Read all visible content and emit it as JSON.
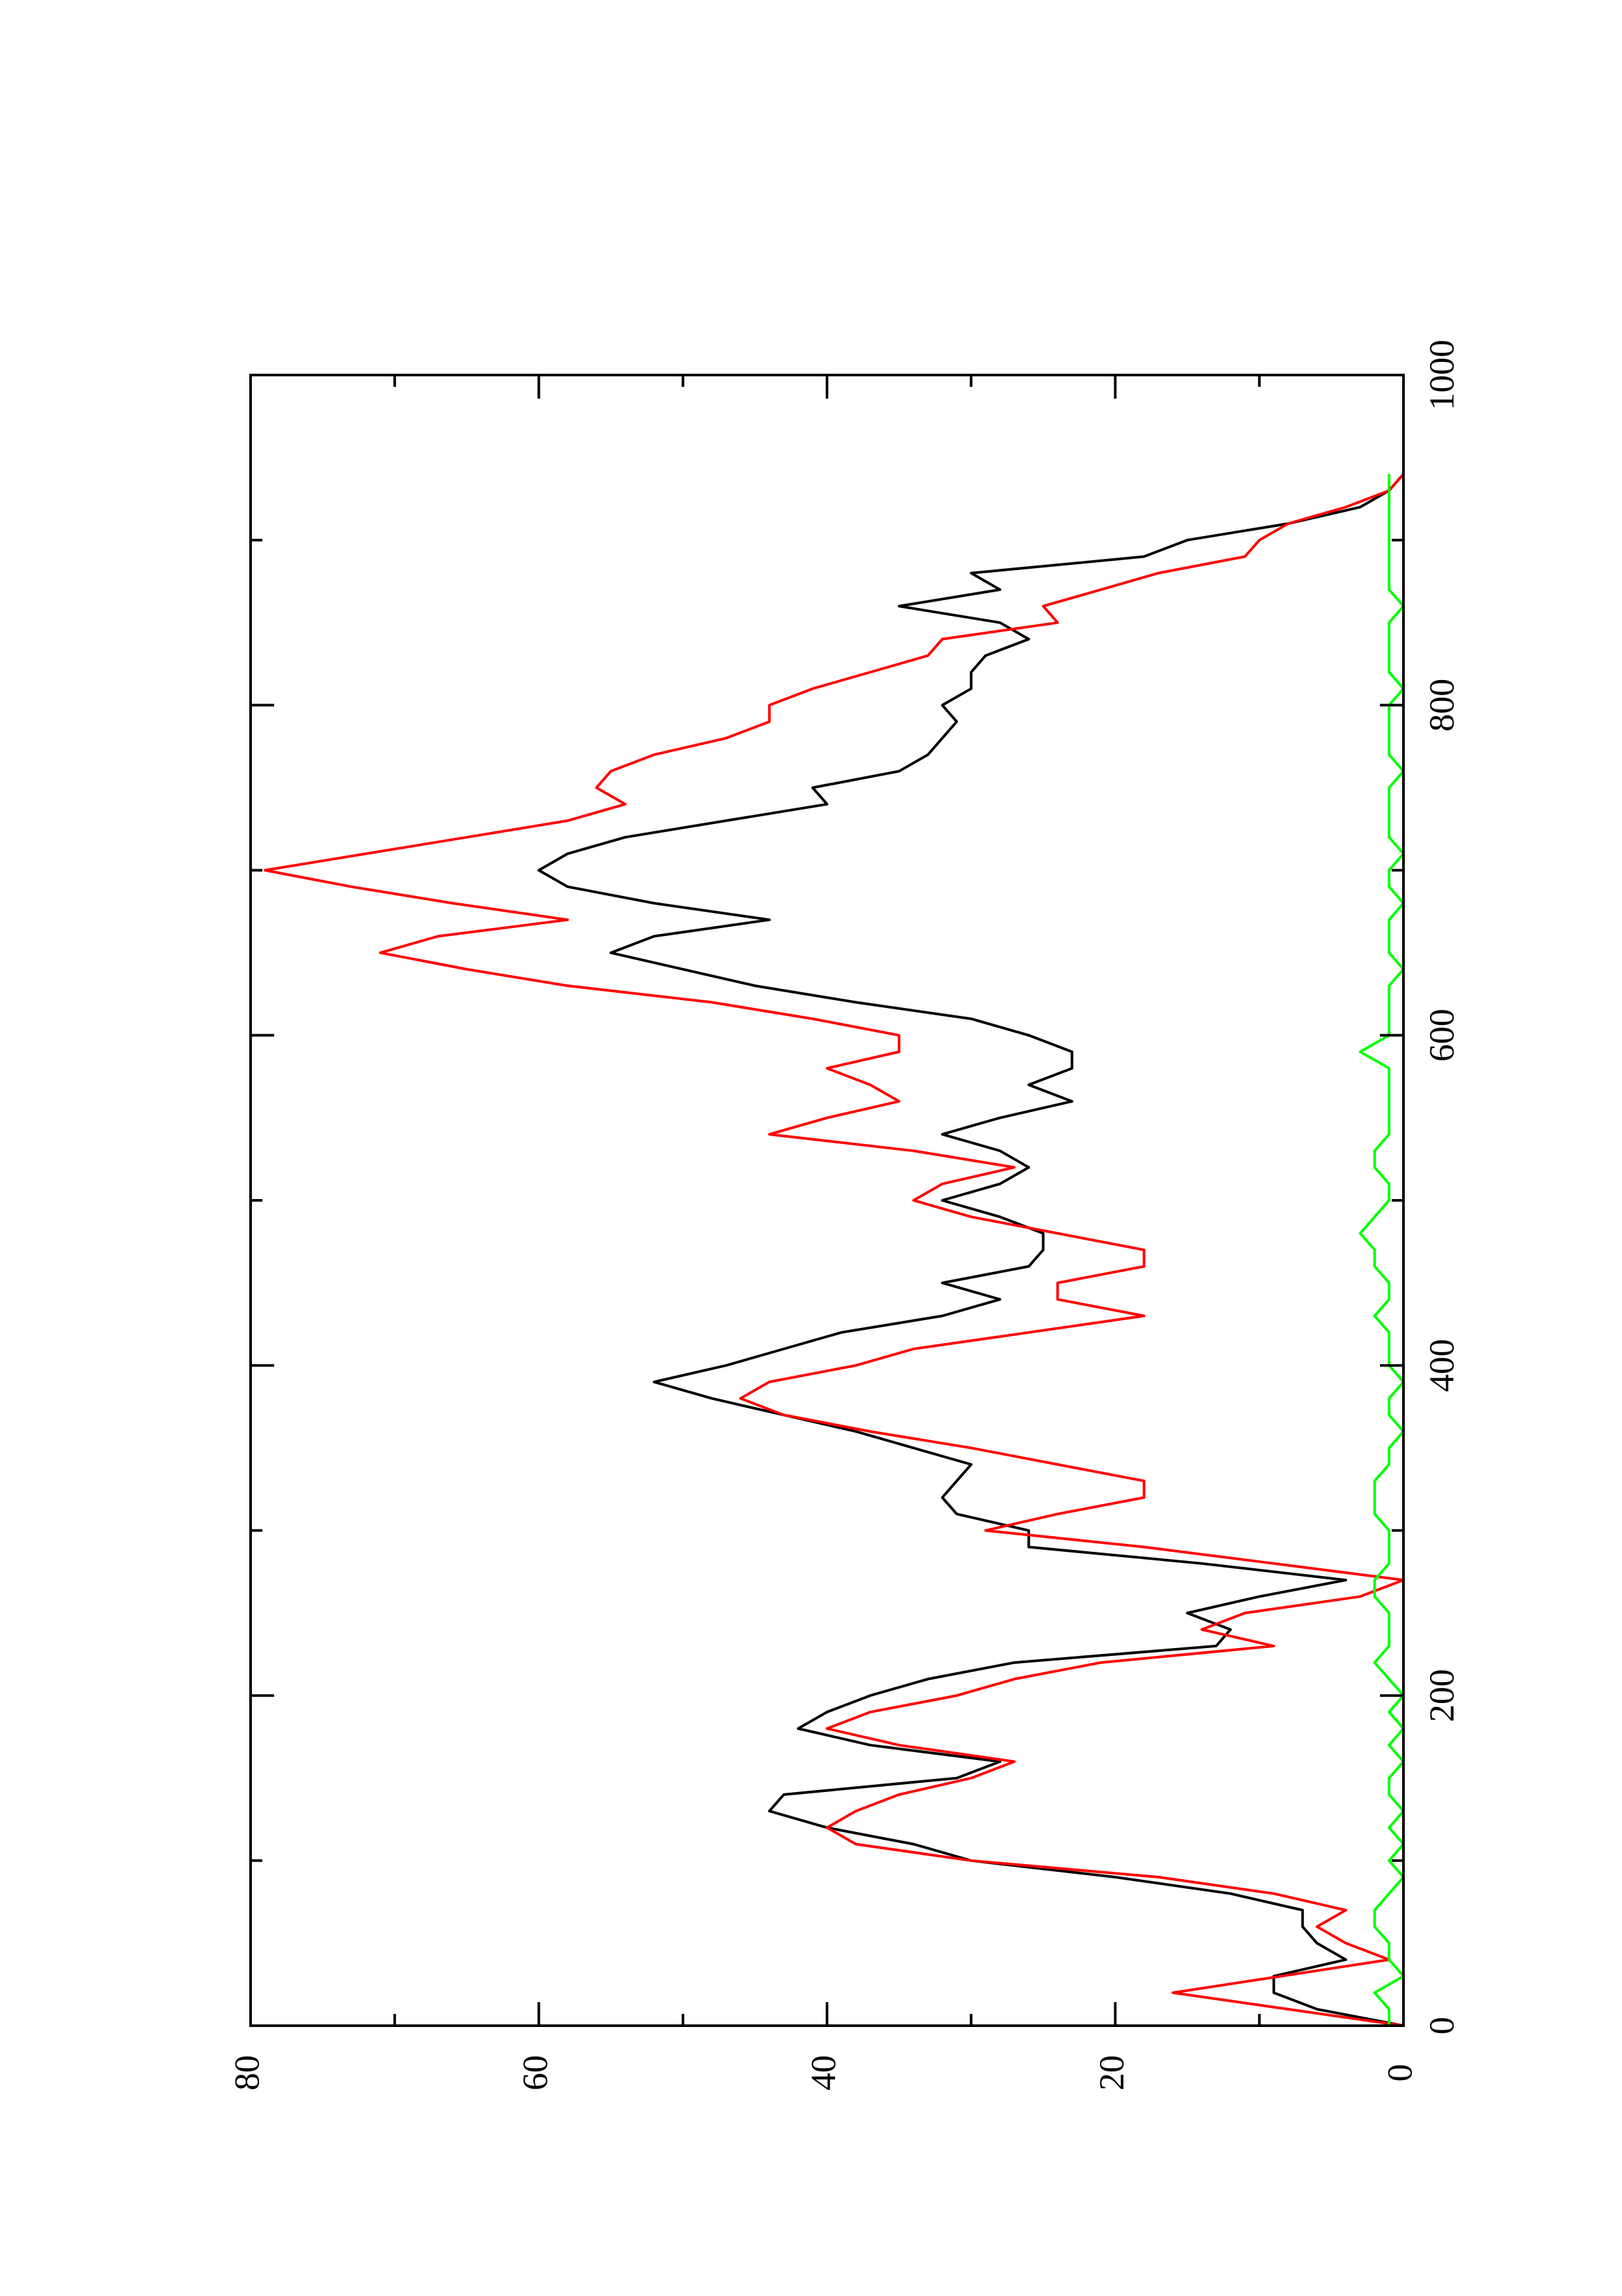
{
  "chart_data": {
    "type": "line",
    "title": "",
    "xlabel": "",
    "ylabel": "",
    "xlim": [
      0,
      1000
    ],
    "ylim": [
      0,
      80
    ],
    "x_ticks": [
      0,
      200,
      400,
      600,
      800,
      1000
    ],
    "y_ticks": [
      0,
      20,
      40,
      60,
      80
    ],
    "orientation": "rotated 90 degrees counter-clockwise",
    "grid": false,
    "legend": "none",
    "series": [
      {
        "color": "#000000",
        "points": [
          [
            0,
            0
          ],
          [
            10,
            6
          ],
          [
            20,
            9
          ],
          [
            30,
            9
          ],
          [
            40,
            4
          ],
          [
            50,
            6
          ],
          [
            60,
            7
          ],
          [
            70,
            7
          ],
          [
            80,
            12
          ],
          [
            90,
            20
          ],
          [
            100,
            30
          ],
          [
            110,
            34
          ],
          [
            120,
            40
          ],
          [
            130,
            44
          ],
          [
            140,
            43
          ],
          [
            150,
            31
          ],
          [
            160,
            28
          ],
          [
            170,
            37
          ],
          [
            180,
            42
          ],
          [
            190,
            40
          ],
          [
            200,
            37
          ],
          [
            210,
            33
          ],
          [
            220,
            27
          ],
          [
            230,
            13
          ],
          [
            240,
            12
          ],
          [
            250,
            15
          ],
          [
            260,
            10
          ],
          [
            270,
            4
          ],
          [
            280,
            14
          ],
          [
            290,
            26
          ],
          [
            300,
            26
          ],
          [
            310,
            31
          ],
          [
            320,
            32
          ],
          [
            330,
            31
          ],
          [
            340,
            30
          ],
          [
            350,
            34
          ],
          [
            360,
            38
          ],
          [
            370,
            43
          ],
          [
            380,
            48
          ],
          [
            390,
            52
          ],
          [
            400,
            47
          ],
          [
            410,
            43
          ],
          [
            420,
            39
          ],
          [
            430,
            32
          ],
          [
            440,
            28
          ],
          [
            450,
            32
          ],
          [
            460,
            26
          ],
          [
            470,
            25
          ],
          [
            480,
            25
          ],
          [
            490,
            28
          ],
          [
            500,
            32
          ],
          [
            510,
            28
          ],
          [
            520,
            26
          ],
          [
            530,
            28
          ],
          [
            540,
            32
          ],
          [
            550,
            28
          ],
          [
            560,
            23
          ],
          [
            570,
            26
          ],
          [
            580,
            23
          ],
          [
            590,
            23
          ],
          [
            600,
            26
          ],
          [
            610,
            30
          ],
          [
            620,
            38
          ],
          [
            630,
            45
          ],
          [
            640,
            50
          ],
          [
            650,
            55
          ],
          [
            660,
            52
          ],
          [
            670,
            44
          ],
          [
            680,
            52
          ],
          [
            690,
            58
          ],
          [
            700,
            60
          ],
          [
            710,
            58
          ],
          [
            720,
            54
          ],
          [
            730,
            47
          ],
          [
            740,
            40
          ],
          [
            750,
            41
          ],
          [
            760,
            35
          ],
          [
            770,
            33
          ],
          [
            780,
            32
          ],
          [
            790,
            31
          ],
          [
            800,
            32
          ],
          [
            810,
            30
          ],
          [
            820,
            30
          ],
          [
            830,
            29
          ],
          [
            840,
            26
          ],
          [
            850,
            28
          ],
          [
            860,
            35
          ],
          [
            870,
            28
          ],
          [
            880,
            30
          ],
          [
            890,
            18
          ],
          [
            900,
            15
          ],
          [
            910,
            8
          ],
          [
            920,
            3
          ],
          [
            930,
            1
          ],
          [
            940,
            0
          ]
        ]
      },
      {
        "color": "#ff0000",
        "points": [
          [
            0,
            0
          ],
          [
            20,
            16
          ],
          [
            40,
            1
          ],
          [
            50,
            4
          ],
          [
            60,
            6
          ],
          [
            70,
            4
          ],
          [
            80,
            9
          ],
          [
            90,
            17
          ],
          [
            100,
            30
          ],
          [
            110,
            38
          ],
          [
            120,
            40
          ],
          [
            130,
            38
          ],
          [
            140,
            35
          ],
          [
            150,
            30
          ],
          [
            160,
            27
          ],
          [
            170,
            35
          ],
          [
            180,
            40
          ],
          [
            190,
            37
          ],
          [
            200,
            31
          ],
          [
            210,
            27
          ],
          [
            220,
            21
          ],
          [
            230,
            9
          ],
          [
            240,
            14
          ],
          [
            250,
            11
          ],
          [
            260,
            3
          ],
          [
            270,
            0
          ],
          [
            280,
            9
          ],
          [
            290,
            18
          ],
          [
            300,
            29
          ],
          [
            310,
            24
          ],
          [
            320,
            18
          ],
          [
            330,
            18
          ],
          [
            340,
            24
          ],
          [
            350,
            30
          ],
          [
            360,
            37
          ],
          [
            370,
            43
          ],
          [
            380,
            46
          ],
          [
            390,
            44
          ],
          [
            400,
            38
          ],
          [
            410,
            34
          ],
          [
            420,
            26
          ],
          [
            430,
            18
          ],
          [
            440,
            24
          ],
          [
            450,
            24
          ],
          [
            460,
            18
          ],
          [
            470,
            18
          ],
          [
            480,
            24
          ],
          [
            490,
            30
          ],
          [
            500,
            34
          ],
          [
            510,
            32
          ],
          [
            520,
            27
          ],
          [
            530,
            34
          ],
          [
            540,
            44
          ],
          [
            550,
            40
          ],
          [
            560,
            35
          ],
          [
            570,
            37
          ],
          [
            580,
            40
          ],
          [
            590,
            35
          ],
          [
            600,
            35
          ],
          [
            610,
            41
          ],
          [
            620,
            48
          ],
          [
            630,
            58
          ],
          [
            640,
            65
          ],
          [
            650,
            71
          ],
          [
            660,
            67
          ],
          [
            670,
            58
          ],
          [
            680,
            66
          ],
          [
            690,
            73
          ],
          [
            700,
            79
          ],
          [
            710,
            72
          ],
          [
            720,
            65
          ],
          [
            730,
            58
          ],
          [
            740,
            54
          ],
          [
            750,
            56
          ],
          [
            760,
            55
          ],
          [
            770,
            52
          ],
          [
            780,
            47
          ],
          [
            790,
            44
          ],
          [
            800,
            44
          ],
          [
            810,
            41
          ],
          [
            820,
            37
          ],
          [
            830,
            33
          ],
          [
            840,
            32
          ],
          [
            850,
            24
          ],
          [
            860,
            25
          ],
          [
            870,
            21
          ],
          [
            880,
            17
          ],
          [
            890,
            11
          ],
          [
            900,
            10
          ],
          [
            910,
            8
          ],
          [
            920,
            4
          ],
          [
            930,
            1
          ],
          [
            940,
            0
          ]
        ]
      },
      {
        "color": "#00ff00",
        "points": [
          [
            0,
            1
          ],
          [
            10,
            1
          ],
          [
            20,
            2
          ],
          [
            30,
            0
          ],
          [
            40,
            1
          ],
          [
            50,
            1
          ],
          [
            60,
            2
          ],
          [
            70,
            2
          ],
          [
            80,
            1
          ],
          [
            90,
            0
          ],
          [
            100,
            1
          ],
          [
            110,
            0
          ],
          [
            120,
            1
          ],
          [
            130,
            0
          ],
          [
            140,
            1
          ],
          [
            150,
            1
          ],
          [
            160,
            0
          ],
          [
            170,
            1
          ],
          [
            180,
            0
          ],
          [
            190,
            1
          ],
          [
            200,
            0
          ],
          [
            210,
            1
          ],
          [
            220,
            2
          ],
          [
            230,
            1
          ],
          [
            240,
            1
          ],
          [
            250,
            1
          ],
          [
            260,
            2
          ],
          [
            270,
            2
          ],
          [
            280,
            1
          ],
          [
            290,
            1
          ],
          [
            300,
            1
          ],
          [
            310,
            2
          ],
          [
            320,
            2
          ],
          [
            330,
            2
          ],
          [
            340,
            1
          ],
          [
            350,
            1
          ],
          [
            360,
            0
          ],
          [
            370,
            1
          ],
          [
            380,
            1
          ],
          [
            390,
            0
          ],
          [
            400,
            1
          ],
          [
            410,
            1
          ],
          [
            420,
            1
          ],
          [
            430,
            2
          ],
          [
            440,
            1
          ],
          [
            450,
            1
          ],
          [
            460,
            2
          ],
          [
            470,
            2
          ],
          [
            480,
            3
          ],
          [
            490,
            2
          ],
          [
            500,
            1
          ],
          [
            510,
            1
          ],
          [
            520,
            2
          ],
          [
            530,
            2
          ],
          [
            540,
            1
          ],
          [
            550,
            1
          ],
          [
            560,
            1
          ],
          [
            570,
            1
          ],
          [
            580,
            1
          ],
          [
            590,
            3
          ],
          [
            600,
            1
          ],
          [
            610,
            1
          ],
          [
            620,
            1
          ],
          [
            630,
            1
          ],
          [
            640,
            0
          ],
          [
            650,
            1
          ],
          [
            660,
            1
          ],
          [
            670,
            1
          ],
          [
            680,
            0
          ],
          [
            690,
            1
          ],
          [
            700,
            1
          ],
          [
            710,
            0
          ],
          [
            720,
            1
          ],
          [
            730,
            1
          ],
          [
            740,
            1
          ],
          [
            750,
            1
          ],
          [
            760,
            0
          ],
          [
            770,
            1
          ],
          [
            780,
            1
          ],
          [
            790,
            1
          ],
          [
            800,
            1
          ],
          [
            810,
            0
          ],
          [
            820,
            1
          ],
          [
            830,
            1
          ],
          [
            840,
            1
          ],
          [
            850,
            1
          ],
          [
            860,
            0
          ],
          [
            870,
            1
          ],
          [
            880,
            1
          ],
          [
            890,
            1
          ],
          [
            900,
            1
          ],
          [
            910,
            1
          ],
          [
            920,
            1
          ],
          [
            930,
            1
          ],
          [
            940,
            1
          ]
        ]
      }
    ]
  }
}
